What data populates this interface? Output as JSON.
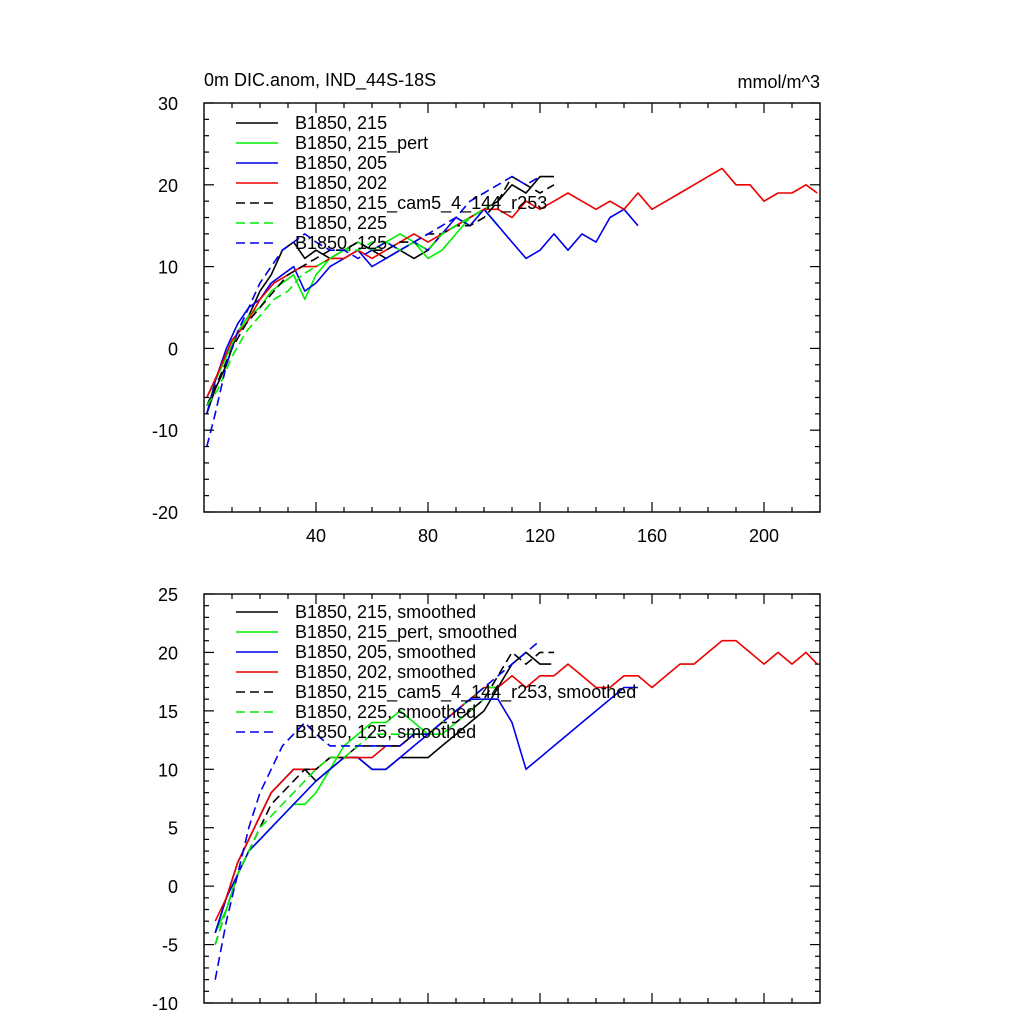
{
  "header": {
    "title": "0m DIC.anom, IND_44S-18S",
    "units": "mmol/m^3"
  },
  "chart_data": [
    {
      "type": "line",
      "panel": "raw",
      "xlim": [
        0,
        220
      ],
      "ylim": [
        -20,
        30
      ],
      "x_ticks": [
        40,
        80,
        120,
        160,
        200
      ],
      "x_tick_labels": [
        "40",
        "80",
        "120",
        "160",
        "200"
      ],
      "y_ticks": [
        -20,
        -10,
        0,
        10,
        20,
        30
      ],
      "y_tick_labels": [
        "-20",
        "-10",
        "0",
        "10",
        "20",
        "30"
      ],
      "legend_position": "top-left",
      "series": [
        {
          "name": "B1850, 215",
          "color": "#000000",
          "dash": "solid",
          "x": [
            1,
            4,
            8,
            12,
            16,
            20,
            24,
            28,
            32,
            36,
            40,
            45,
            50,
            55,
            60,
            65,
            70,
            75,
            80,
            85,
            90,
            95,
            100,
            105,
            110,
            115,
            120,
            125
          ],
          "y": [
            -8,
            -5,
            -2,
            2,
            4,
            7,
            9,
            12,
            13,
            11,
            12,
            11,
            12,
            13,
            12,
            11,
            12,
            11,
            12,
            14,
            15,
            16,
            17,
            18,
            20,
            19,
            21,
            21
          ]
        },
        {
          "name": "B1850, 215_pert",
          "color": "#00ee00",
          "dash": "solid",
          "x": [
            1,
            4,
            8,
            12,
            16,
            20,
            24,
            28,
            32,
            36,
            40,
            45,
            50,
            55,
            60,
            65,
            70,
            75,
            80,
            85,
            90,
            95,
            100,
            105
          ],
          "y": [
            -6,
            -4,
            -1,
            2,
            4,
            5,
            7,
            8,
            9,
            6,
            9,
            11,
            12,
            13,
            12,
            13,
            14,
            13,
            11,
            12,
            14,
            16,
            17,
            15
          ]
        },
        {
          "name": "B1850, 205",
          "color": "#0000ee",
          "dash": "solid",
          "x": [
            1,
            4,
            8,
            12,
            16,
            20,
            24,
            28,
            32,
            36,
            40,
            45,
            50,
            55,
            60,
            65,
            70,
            75,
            80,
            85,
            90,
            95,
            100,
            105,
            110,
            115,
            120,
            125,
            130,
            135,
            140,
            145,
            150,
            155
          ],
          "y": [
            -8,
            -4,
            0,
            3,
            5,
            6,
            8,
            9,
            10,
            7,
            8,
            10,
            11,
            12,
            10,
            11,
            12,
            13,
            12,
            14,
            16,
            15,
            17,
            15,
            13,
            11,
            12,
            14,
            12,
            14,
            13,
            16,
            17,
            15
          ]
        },
        {
          "name": "B1850, 202",
          "color": "#ee0000",
          "dash": "solid",
          "x": [
            1,
            5,
            10,
            15,
            20,
            25,
            30,
            35,
            40,
            45,
            50,
            55,
            60,
            65,
            70,
            75,
            80,
            85,
            90,
            95,
            100,
            105,
            110,
            115,
            120,
            125,
            130,
            135,
            140,
            145,
            150,
            155,
            160,
            165,
            170,
            175,
            180,
            185,
            190,
            195,
            200,
            205,
            210,
            215,
            219
          ],
          "y": [
            -6,
            -3,
            1,
            3,
            6,
            8,
            9,
            10,
            10,
            11,
            11,
            12,
            11,
            12,
            13,
            14,
            13,
            14,
            15,
            16,
            17,
            17,
            16,
            18,
            17,
            18,
            19,
            18,
            17,
            18,
            17,
            19,
            17,
            18,
            19,
            20,
            21,
            22,
            20,
            20,
            18,
            19,
            19,
            20,
            19
          ]
        },
        {
          "name": "B1850, 215_cam5_4_144_r253",
          "color": "#000000",
          "dash": "dashed",
          "x": [
            1,
            5,
            10,
            15,
            20,
            25,
            30,
            35,
            40,
            45,
            50,
            55,
            60,
            65,
            70,
            75,
            80,
            85,
            90,
            95,
            100,
            105,
            110,
            115,
            120,
            125
          ],
          "y": [
            -7,
            -4,
            0,
            3,
            5,
            7,
            9,
            10,
            11,
            12,
            12,
            13,
            12,
            12,
            13,
            13,
            14,
            14,
            15,
            15,
            16,
            18,
            21,
            20,
            19,
            20
          ]
        },
        {
          "name": "B1850, 225",
          "color": "#00ee00",
          "dash": "dashed",
          "x": [
            1,
            5,
            10,
            15,
            20,
            25,
            30,
            35,
            40,
            45,
            50,
            55,
            60,
            65,
            70,
            75,
            80,
            85,
            90,
            95,
            100,
            105
          ],
          "y": [
            -7,
            -5,
            -1,
            2,
            4,
            6,
            7,
            9,
            10,
            11,
            12,
            12,
            13,
            13,
            12,
            13,
            12,
            14,
            15,
            16,
            17,
            18
          ]
        },
        {
          "name": "B1850, 125",
          "color": "#0000ee",
          "dash": "dashed",
          "x": [
            1,
            4,
            8,
            12,
            16,
            20,
            24,
            28,
            32,
            36,
            40,
            45,
            50,
            55,
            60,
            65,
            70,
            75,
            80,
            85,
            90,
            95,
            100,
            105,
            110,
            115,
            120
          ],
          "y": [
            -12,
            -8,
            -2,
            2,
            5,
            8,
            10,
            12,
            13,
            14,
            13,
            12,
            12,
            11,
            12,
            13,
            12,
            13,
            14,
            15,
            16,
            18,
            19,
            20,
            21,
            20,
            21
          ]
        }
      ]
    },
    {
      "type": "line",
      "panel": "smoothed",
      "xlim": [
        0,
        220
      ],
      "ylim": [
        -10,
        25
      ],
      "x_ticks": [
        40,
        80,
        120,
        160,
        200
      ],
      "y_ticks": [
        -10,
        -5,
        0,
        5,
        10,
        15,
        20,
        25
      ],
      "y_tick_labels": [
        "-10",
        "-5",
        "0",
        "5",
        "10",
        "15",
        "20",
        "25"
      ],
      "legend_position": "top-left",
      "series": [
        {
          "name": "B1850, 215, smoothed",
          "color": "#000000",
          "dash": "solid",
          "x": [
            4,
            8,
            12,
            16,
            20,
            24,
            28,
            32,
            36,
            40,
            45,
            50,
            55,
            60,
            65,
            70,
            75,
            80,
            85,
            90,
            95,
            100,
            105,
            110,
            115,
            120,
            124
          ],
          "y": [
            -4,
            -1,
            2,
            4,
            6,
            8,
            9,
            10,
            10,
            9,
            10,
            11,
            11,
            10,
            10,
            11,
            11,
            11,
            12,
            13,
            14,
            15,
            17,
            19,
            20,
            19,
            19
          ]
        },
        {
          "name": "B1850, 215_pert, smoothed",
          "color": "#00ee00",
          "dash": "solid",
          "x": [
            4,
            8,
            12,
            16,
            20,
            24,
            28,
            32,
            36,
            40,
            45,
            50,
            55,
            60,
            65,
            70,
            75,
            80,
            85,
            90,
            95,
            100,
            105
          ],
          "y": [
            -4,
            -2,
            1,
            3,
            4,
            5,
            6,
            7,
            7,
            8,
            10,
            12,
            13,
            14,
            14,
            15,
            14,
            13,
            13,
            14,
            15,
            16,
            16
          ]
        },
        {
          "name": "B1850, 205, smoothed",
          "color": "#0000ee",
          "dash": "solid",
          "x": [
            4,
            8,
            12,
            16,
            20,
            24,
            28,
            32,
            36,
            40,
            45,
            50,
            55,
            60,
            65,
            70,
            75,
            80,
            85,
            90,
            95,
            100,
            105,
            110,
            115,
            120,
            125,
            130,
            135,
            140,
            145,
            150,
            155
          ],
          "y": [
            -4,
            -1,
            1,
            3,
            4,
            5,
            6,
            7,
            8,
            9,
            10,
            11,
            11,
            10,
            10,
            11,
            12,
            13,
            14,
            15,
            16,
            16,
            16,
            14,
            10,
            11,
            12,
            13,
            14,
            15,
            16,
            17,
            17
          ]
        },
        {
          "name": "B1850, 202, smoothed",
          "color": "#ee0000",
          "dash": "solid",
          "x": [
            4,
            8,
            12,
            16,
            20,
            24,
            28,
            32,
            36,
            40,
            45,
            50,
            55,
            60,
            65,
            70,
            75,
            80,
            85,
            90,
            95,
            100,
            105,
            110,
            115,
            120,
            125,
            130,
            135,
            140,
            145,
            150,
            155,
            160,
            165,
            170,
            175,
            180,
            185,
            190,
            195,
            200,
            205,
            210,
            215,
            219
          ],
          "y": [
            -3,
            -1,
            2,
            4,
            6,
            8,
            9,
            10,
            10,
            10,
            11,
            11,
            11,
            11,
            12,
            12,
            13,
            13,
            14,
            15,
            16,
            17,
            17,
            18,
            17,
            18,
            18,
            19,
            18,
            17,
            17,
            18,
            18,
            17,
            18,
            19,
            19,
            20,
            21,
            21,
            20,
            19,
            20,
            19,
            20,
            19
          ]
        },
        {
          "name": "B1850, 215_cam5_4_144_r253, smoothed",
          "color": "#000000",
          "dash": "dashed",
          "x": [
            4,
            8,
            12,
            16,
            20,
            24,
            28,
            32,
            36,
            40,
            45,
            50,
            55,
            60,
            65,
            70,
            75,
            80,
            85,
            90,
            95,
            100,
            105,
            110,
            115,
            120,
            125
          ],
          "y": [
            -5,
            -2,
            1,
            3,
            5,
            7,
            8,
            9,
            10,
            10,
            11,
            11,
            12,
            12,
            12,
            12,
            13,
            13,
            14,
            14,
            15,
            16,
            18,
            20,
            19,
            20,
            20
          ]
        },
        {
          "name": "B1850, 225, smoothed",
          "color": "#00ee00",
          "dash": "dashed",
          "x": [
            4,
            8,
            12,
            16,
            20,
            24,
            28,
            32,
            36,
            40,
            45,
            50,
            55,
            60,
            65,
            70,
            75,
            80,
            85,
            90,
            95,
            100,
            105
          ],
          "y": [
            -5,
            -2,
            1,
            3,
            5,
            6,
            7,
            8,
            9,
            10,
            11,
            11,
            12,
            13,
            13,
            13,
            13,
            13,
            14,
            15,
            16,
            17,
            17
          ]
        },
        {
          "name": "B1850, 125, smoothed",
          "color": "#0000ee",
          "dash": "dashed",
          "x": [
            4,
            8,
            12,
            16,
            20,
            24,
            28,
            32,
            36,
            40,
            45,
            50,
            55,
            60,
            65,
            70,
            75,
            80,
            85,
            90,
            95,
            100,
            105,
            110,
            115,
            120
          ],
          "y": [
            -8,
            -3,
            1,
            5,
            8,
            10,
            12,
            13,
            14,
            13,
            12,
            12,
            12,
            12,
            12,
            12,
            13,
            13,
            14,
            15,
            16,
            17,
            18,
            19,
            20,
            21
          ]
        }
      ]
    }
  ]
}
